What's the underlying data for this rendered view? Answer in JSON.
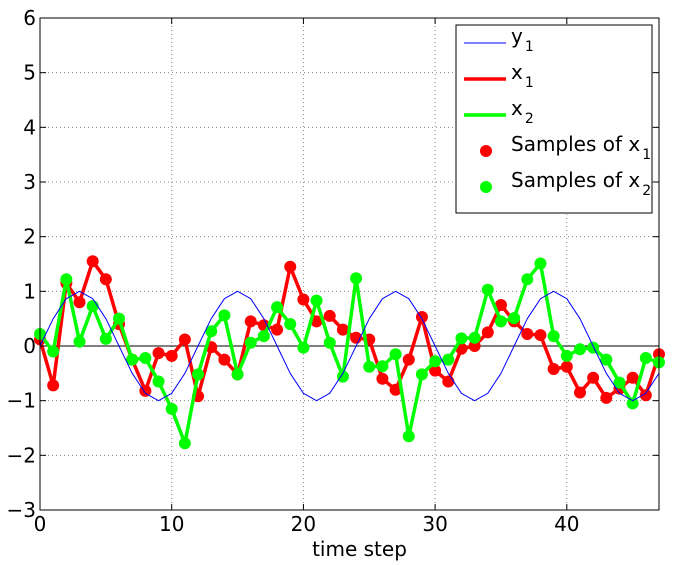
{
  "chart_data": {
    "type": "line",
    "title": "",
    "xlabel": "time step",
    "ylabel": "",
    "xlim": [
      0,
      47
    ],
    "ylim": [
      -3,
      6
    ],
    "xticks": [
      0,
      10,
      20,
      30,
      40
    ],
    "yticks": [
      -3,
      -2,
      -1,
      0,
      1,
      2,
      3,
      4,
      5,
      6
    ],
    "grid": true,
    "legend_position": "top-right",
    "x": [
      0,
      1,
      2,
      3,
      4,
      5,
      6,
      7,
      8,
      9,
      10,
      11,
      12,
      13,
      14,
      15,
      16,
      17,
      18,
      19,
      20,
      21,
      22,
      23,
      24,
      25,
      26,
      27,
      28,
      29,
      30,
      31,
      32,
      33,
      34,
      35,
      36,
      37,
      38,
      39,
      40,
      41,
      42,
      43,
      44,
      45,
      46,
      47
    ],
    "series": [
      {
        "name": "y",
        "name_sub": "1",
        "style": "line",
        "color": "#0000ff",
        "values": [
          0,
          0.5,
          0.866,
          1,
          0.866,
          0.5,
          0,
          -0.5,
          -0.866,
          -1,
          -0.866,
          -0.5,
          0,
          0.5,
          0.866,
          1,
          0.866,
          0.5,
          0,
          -0.5,
          -0.866,
          -1,
          -0.866,
          -0.5,
          0,
          0.5,
          0.866,
          1,
          0.866,
          0.5,
          0,
          -0.5,
          -0.866,
          -1,
          -0.866,
          -0.5,
          0,
          0.5,
          0.866,
          1,
          0.866,
          0.5,
          0,
          -0.5,
          -0.866,
          -1,
          -0.866,
          -0.5
        ],
        "note": "y1 plotted as sinusoid following the visible blue curve"
      },
      {
        "name": "x",
        "name_sub": "1",
        "style": "line-markers",
        "color": "#ff0000",
        "marker_legend": "Samples of x",
        "marker_legend_sub": "1",
        "values": [
          0.12,
          -0.72,
          1.15,
          0.8,
          1.55,
          1.22,
          0.4,
          -0.25,
          -0.82,
          -0.13,
          -0.18,
          0.12,
          -0.92,
          -0.02,
          -0.25,
          -0.52,
          0.45,
          0.38,
          0.3,
          1.45,
          0.85,
          0.45,
          0.55,
          0.3,
          0.15,
          0.12,
          -0.6,
          -0.8,
          -0.25,
          0.53,
          -0.45,
          -0.65,
          -0.05,
          0,
          0.25,
          0.75,
          0.45,
          0.22,
          0.2,
          -0.42,
          -0.38,
          -0.85,
          -0.58,
          -0.95,
          -0.78,
          -0.58,
          -0.9,
          -0.15
        ]
      },
      {
        "name": "x",
        "name_sub": "2",
        "style": "line-markers",
        "color": "#00ff00",
        "marker_legend": "Samples of x",
        "marker_legend_sub": "2",
        "values": [
          0.22,
          -0.1,
          1.22,
          0.08,
          0.73,
          0.13,
          0.5,
          -0.25,
          -0.22,
          -0.65,
          -1.15,
          -1.78,
          -0.52,
          0.27,
          0.56,
          -0.52,
          0.06,
          0.18,
          0.71,
          0.4,
          -0.03,
          0.83,
          0.06,
          -0.56,
          1.24,
          -0.38,
          -0.37,
          -0.15,
          -1.65,
          -0.52,
          -0.28,
          -0.25,
          0.14,
          0.15,
          1.03,
          0.45,
          0.51,
          1.22,
          1.51,
          0.18,
          -0.18,
          -0.06,
          -0.03,
          -0.25,
          -0.67,
          -1.05,
          -0.22,
          -0.3
        ]
      }
    ]
  }
}
